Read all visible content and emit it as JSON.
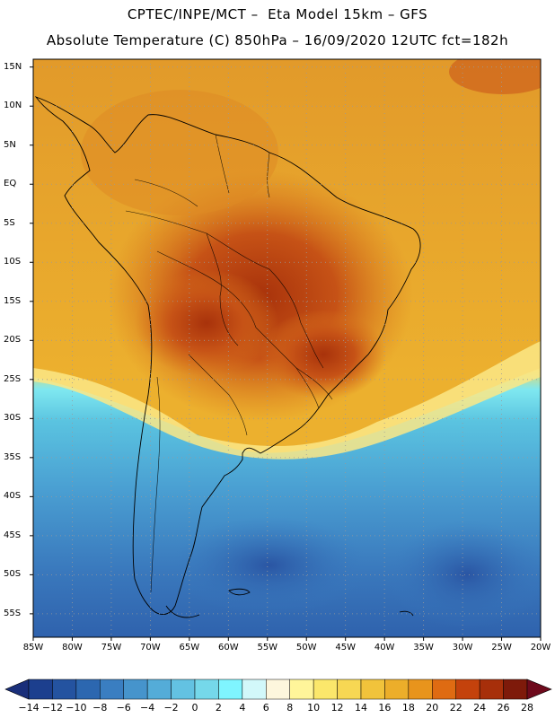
{
  "header": {
    "line1": "CPTEC/INPE/MCT –  Eta Model 15km – GFS",
    "line2": "Absolute Temperature (C) 850hPa – 16/09/2020 12UTC fct=182h"
  },
  "map": {
    "lat_labels": [
      "15N",
      "10N",
      "5N",
      "EQ",
      "5S",
      "10S",
      "15S",
      "20S",
      "25S",
      "30S",
      "35S",
      "40S",
      "45S",
      "50S",
      "55S"
    ],
    "lon_labels": [
      "85W",
      "80W",
      "75W",
      "70W",
      "65W",
      "60W",
      "55W",
      "50W",
      "45W",
      "40W",
      "35W",
      "30W",
      "25W",
      "20W"
    ],
    "lat_range": [
      -58,
      16
    ],
    "lon_range": [
      -85,
      -20
    ],
    "grid": "dotted"
  },
  "colorbar": {
    "labels": [
      "-14",
      "-12",
      "-10",
      "-8",
      "-6",
      "-4",
      "-2",
      "0",
      "2",
      "4",
      "6",
      "8",
      "10",
      "12",
      "14",
      "16",
      "18",
      "20",
      "22",
      "24",
      "26",
      "28"
    ],
    "colors": [
      "#1c3f8e",
      "#2453a0",
      "#2c67b0",
      "#3a7ec1",
      "#4694cc",
      "#54acd8",
      "#63c2e2",
      "#75d8ea",
      "#7ff5ff",
      "#d2f8fa",
      "#fdf6dd",
      "#fff59a",
      "#fbe76b",
      "#f7d753",
      "#f1c33b",
      "#ecae2a",
      "#e8941c",
      "#df6b12",
      "#c4420c",
      "#a72f0a",
      "#7e1a0a"
    ],
    "left_arrow_color": "#1a2f7a",
    "right_arrow_color": "#6e0a1c"
  }
}
